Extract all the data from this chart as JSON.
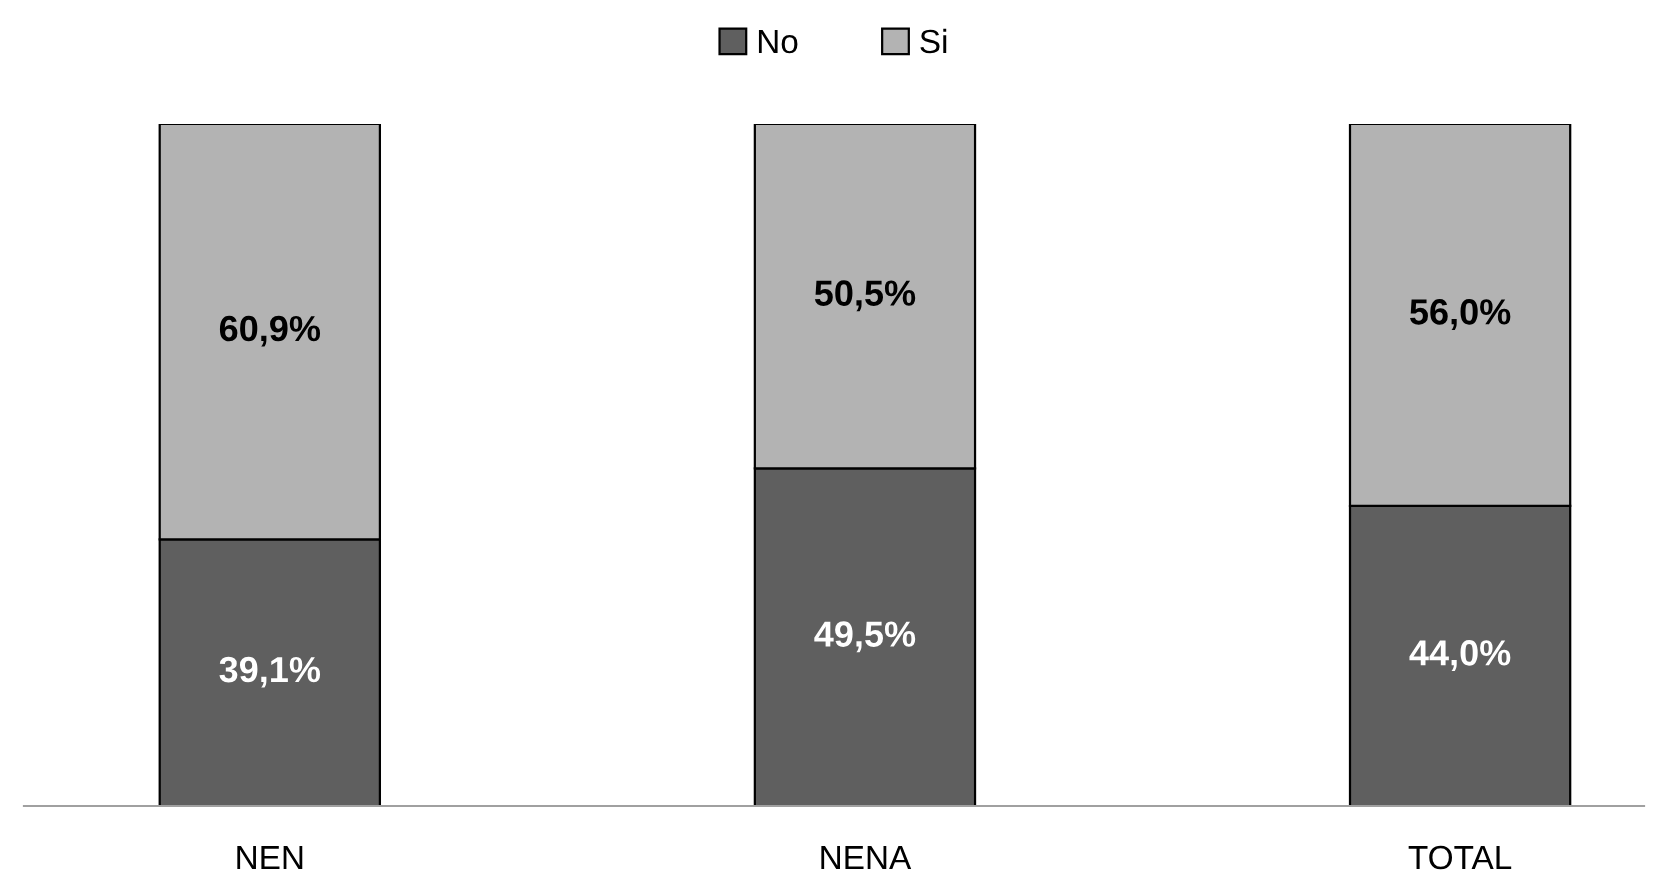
{
  "chart_data": {
    "type": "bar",
    "stacked": true,
    "categories": [
      "NEN",
      "NENA",
      "TOTAL"
    ],
    "series": [
      {
        "name": "No",
        "color": "#5f5f5f",
        "values": [
          39.1,
          49.5,
          44.0
        ],
        "value_labels": [
          "39,1%",
          "49,5%",
          "44,0%"
        ]
      },
      {
        "name": "Si",
        "color": "#b3b3b3",
        "values": [
          60.9,
          50.5,
          56.0
        ],
        "value_labels": [
          "60,9%",
          "50,5%",
          "56,0%"
        ]
      }
    ],
    "legend": "top",
    "grid": false,
    "tick_labels": "x"
  }
}
